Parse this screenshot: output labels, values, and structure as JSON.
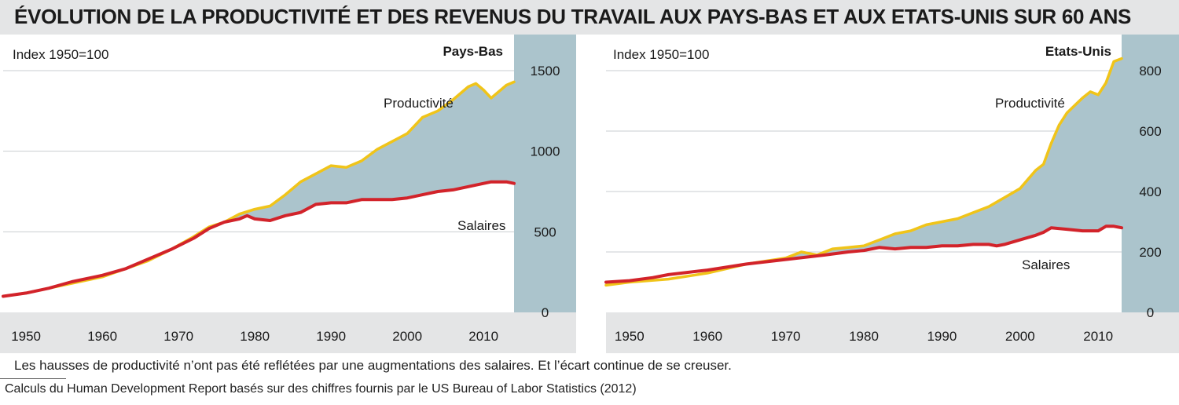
{
  "title": "ÉVOLUTION DE LA PRODUCTIVITÉ ET DES REVENUS DU TRAVAIL AUX PAYS-BAS ET AUX ETATS-UNIS SUR 60 ANS",
  "caption": "Les hausses de productivité n’ont pas été reflétées par une augmentations des salaires. Et l’écart continue de se creuser.",
  "source": "Calculs du Human Development Report basés sur des chiffres fournis par le US Bureau of Labor Statistics (2012)",
  "colors": {
    "productivity": "#f0c419",
    "wages": "#d2232a",
    "gap_fill": "#abc4cc",
    "axis_panel": "#abc4cc",
    "x_axis_band": "#e4e5e6",
    "grid": "#c9cdd0"
  },
  "chart_data": [
    {
      "type": "area",
      "panel_label": "Pays-Bas",
      "index_label": "Index 1950=100",
      "xlim": [
        1947,
        2014
      ],
      "ylim": [
        0,
        1500
      ],
      "yticks": [
        0,
        500,
        1000,
        1500
      ],
      "xticks": [
        1950,
        1960,
        1970,
        1980,
        1990,
        2000,
        2010
      ],
      "series": [
        {
          "name": "Productivité",
          "x": [
            1947,
            1950,
            1953,
            1956,
            1960,
            1963,
            1966,
            1969,
            1972,
            1974,
            1976,
            1978,
            1980,
            1982,
            1984,
            1986,
            1988,
            1990,
            1992,
            1994,
            1996,
            1998,
            2000,
            2001,
            2002,
            2004,
            2006,
            2008,
            2009,
            2010,
            2011,
            2012,
            2013,
            2014
          ],
          "y": [
            100,
            120,
            150,
            180,
            220,
            270,
            320,
            390,
            470,
            530,
            560,
            610,
            640,
            660,
            730,
            810,
            860,
            910,
            900,
            940,
            1010,
            1060,
            1110,
            1160,
            1210,
            1250,
            1320,
            1400,
            1420,
            1380,
            1330,
            1370,
            1410,
            1430
          ]
        },
        {
          "name": "Salaires",
          "x": [
            1947,
            1950,
            1953,
            1956,
            1960,
            1963,
            1966,
            1969,
            1972,
            1974,
            1976,
            1978,
            1979,
            1980,
            1982,
            1984,
            1986,
            1988,
            1990,
            1992,
            1994,
            1996,
            1998,
            2000,
            2002,
            2004,
            2006,
            2008,
            2010,
            2011,
            2012,
            2013,
            2014
          ],
          "y": [
            100,
            120,
            150,
            190,
            230,
            270,
            330,
            390,
            460,
            520,
            560,
            580,
            600,
            580,
            570,
            600,
            620,
            670,
            680,
            680,
            700,
            700,
            700,
            710,
            730,
            750,
            760,
            780,
            800,
            810,
            810,
            810,
            800
          ]
        }
      ],
      "annotations": [
        "Productivité",
        "Salaires"
      ]
    },
    {
      "type": "area",
      "panel_label": "Etats-Unis",
      "index_label": "Index 1950=100",
      "xlim": [
        1947,
        2013
      ],
      "ylim": [
        0,
        800
      ],
      "yticks": [
        0,
        200,
        400,
        600,
        800
      ],
      "xticks": [
        1950,
        1960,
        1970,
        1980,
        1990,
        2000,
        2010
      ],
      "series": [
        {
          "name": "Productivité",
          "x": [
            1947,
            1950,
            1955,
            1960,
            1965,
            1970,
            1972,
            1974,
            1976,
            1978,
            1980,
            1982,
            1984,
            1986,
            1988,
            1990,
            1992,
            1994,
            1996,
            1998,
            2000,
            2002,
            2003,
            2004,
            2005,
            2006,
            2008,
            2009,
            2010,
            2011,
            2012,
            2013
          ],
          "y": [
            90,
            100,
            110,
            130,
            160,
            180,
            200,
            190,
            210,
            215,
            220,
            240,
            260,
            270,
            290,
            300,
            310,
            330,
            350,
            380,
            410,
            470,
            490,
            560,
            620,
            660,
            710,
            730,
            720,
            760,
            830,
            840
          ]
        },
        {
          "name": "Salaires",
          "x": [
            1947,
            1950,
            1953,
            1955,
            1960,
            1965,
            1970,
            1975,
            1978,
            1980,
            1982,
            1984,
            1986,
            1988,
            1990,
            1992,
            1994,
            1996,
            1997,
            1998,
            2000,
            2002,
            2003,
            2004,
            2006,
            2008,
            2010,
            2011,
            2012,
            2013
          ],
          "y": [
            100,
            105,
            115,
            125,
            140,
            160,
            175,
            190,
            200,
            205,
            215,
            210,
            215,
            215,
            220,
            220,
            225,
            225,
            220,
            225,
            240,
            255,
            265,
            280,
            275,
            270,
            270,
            285,
            285,
            280
          ]
        }
      ],
      "annotations": [
        "Productivité",
        "Salaires"
      ]
    }
  ]
}
